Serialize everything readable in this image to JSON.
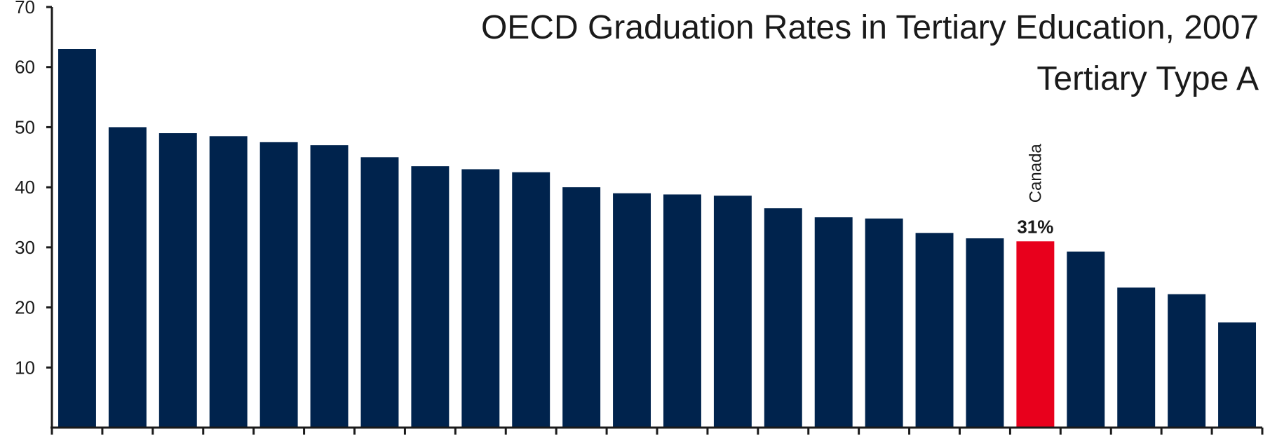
{
  "chart_data": {
    "type": "bar",
    "title": "OECD Graduation Rates in Tertiary Education, 2007",
    "subtitle": "Tertiary Type A",
    "ylim": [
      0,
      70
    ],
    "yticks": [
      10,
      20,
      30,
      40,
      50,
      60,
      70
    ],
    "grid": false,
    "values": [
      63,
      50,
      49,
      48.5,
      47.5,
      47,
      45,
      43.5,
      43,
      42.5,
      40,
      39,
      38.8,
      38.6,
      36.5,
      35,
      34.8,
      32.4,
      31.5,
      31,
      29.3,
      23.3,
      22.2,
      17.5
    ],
    "highlight": {
      "index": 19,
      "category": "Canada",
      "value_label": "31%"
    },
    "colors": {
      "bar": "#00234d",
      "highlight": "#e8001c",
      "axis": "#1a1a1a"
    }
  }
}
